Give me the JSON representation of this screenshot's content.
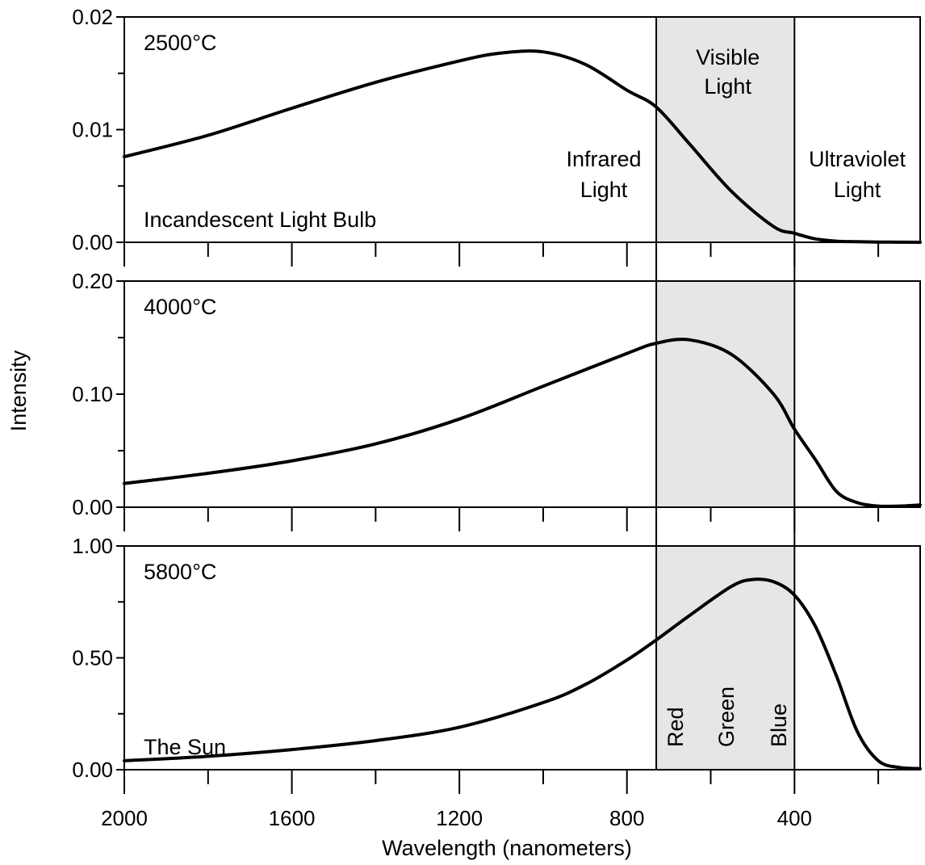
{
  "chart_data": {
    "type": "line",
    "xlabel": "Wavelength (nanometers)",
    "ylabel": "Intensity",
    "x_range": [
      2000,
      100
    ],
    "x_ticks": [
      "2000",
      "1600",
      "1200",
      "800",
      "400"
    ],
    "grid": false,
    "visible_band": {
      "range_nm": [
        730,
        400
      ],
      "title_lines": [
        "Visible",
        "Light"
      ],
      "color_labels": [
        "Red",
        "Green",
        "Blue"
      ],
      "infrared_lines": [
        "Infrared",
        "Light"
      ],
      "ultraviolet_lines": [
        "Ultraviolet",
        "Light"
      ]
    },
    "panels": [
      {
        "temperature": "2500°C",
        "source": "Incandescent Light Bulb",
        "ylim": [
          0,
          0.02
        ],
        "y_ticks": [
          "0.02",
          "0.01",
          "0.00"
        ],
        "x": [
          2000,
          1800,
          1600,
          1400,
          1200,
          1100,
          1000,
          900,
          800,
          730,
          650,
          550,
          450,
          400,
          350,
          300,
          250,
          200,
          150,
          100
        ],
        "y": [
          0.0076,
          0.0095,
          0.0119,
          0.0142,
          0.0161,
          0.0168,
          0.0169,
          0.0158,
          0.0135,
          0.012,
          0.0087,
          0.0045,
          0.0014,
          0.0008,
          0.0003,
          0.0001,
          5e-05,
          2e-05,
          1e-05,
          0.0
        ]
      },
      {
        "temperature": "4000°C",
        "source": "",
        "ylim": [
          0,
          0.2
        ],
        "y_ticks": [
          "0.20",
          "0.10",
          "0.00"
        ],
        "x": [
          2000,
          1800,
          1600,
          1400,
          1200,
          1000,
          800,
          730,
          650,
          550,
          450,
          400,
          350,
          300,
          250,
          200,
          150,
          100
        ],
        "y": [
          0.021,
          0.03,
          0.041,
          0.056,
          0.078,
          0.107,
          0.136,
          0.145,
          0.148,
          0.135,
          0.1,
          0.069,
          0.042,
          0.014,
          0.004,
          0.001,
          0.001,
          0.002
        ]
      },
      {
        "temperature": "5800°C",
        "source": "The Sun",
        "ylim": [
          0,
          1.0
        ],
        "y_ticks": [
          "1.00",
          "0.50",
          "0.00"
        ],
        "x": [
          2000,
          1800,
          1600,
          1400,
          1200,
          1000,
          900,
          800,
          730,
          650,
          550,
          500,
          450,
          400,
          350,
          300,
          250,
          200,
          150,
          100
        ],
        "y": [
          0.04,
          0.06,
          0.09,
          0.13,
          0.19,
          0.3,
          0.38,
          0.49,
          0.58,
          0.69,
          0.82,
          0.85,
          0.84,
          0.78,
          0.64,
          0.42,
          0.17,
          0.04,
          0.01,
          0.005
        ]
      }
    ]
  }
}
